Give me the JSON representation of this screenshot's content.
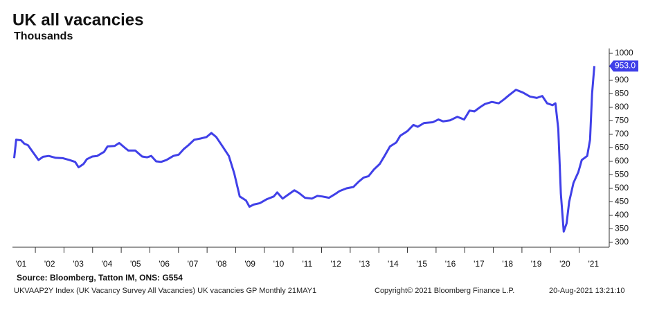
{
  "chart_data": {
    "type": "line",
    "title": "UK all vacancies",
    "subtitle": "Thousands",
    "source": "Source: Bloomberg, Tatton IM, ONS: G554",
    "footer_left": "UKVAAP2Y Index (UK Vacancy Survey All Vacancies) UK vacancies GP  Monthly 21MAY1",
    "footer_center": "Copyright© 2021 Bloomberg Finance L.P.",
    "footer_right": "20-Aug-2021 13:21:10",
    "color": "#4040e8",
    "x": [
      2001.26,
      2001.33,
      2001.5,
      2001.62,
      2001.74,
      2001.94,
      2002.11,
      2002.27,
      2002.47,
      2002.71,
      2002.95,
      2003.19,
      2003.39,
      2003.51,
      2003.68,
      2003.8,
      2003.99,
      2004.16,
      2004.4,
      2004.52,
      2004.77,
      2004.93,
      2005.13,
      2005.25,
      2005.49,
      2005.73,
      2005.9,
      2006.05,
      2006.22,
      2006.39,
      2006.58,
      2006.82,
      2007.01,
      2007.18,
      2007.35,
      2007.55,
      2007.79,
      2007.98,
      2008.15,
      2008.32,
      2008.51,
      2008.76,
      2008.95,
      2009.05,
      2009.14,
      2009.36,
      2009.48,
      2009.63,
      2009.84,
      2010.09,
      2010.33,
      2010.45,
      2010.64,
      2010.81,
      2011.05,
      2011.22,
      2011.42,
      2011.66,
      2011.85,
      2012.02,
      2012.26,
      2012.46,
      2012.63,
      2012.87,
      2013.11,
      2013.3,
      2013.47,
      2013.64,
      2013.83,
      2014.03,
      2014.2,
      2014.39,
      2014.61,
      2014.75,
      2015.0,
      2015.21,
      2015.36,
      2015.58,
      2015.89,
      2016.08,
      2016.25,
      2016.49,
      2016.74,
      2016.98,
      2017.17,
      2017.34,
      2017.53,
      2017.7,
      2017.95,
      2018.19,
      2018.38,
      2018.55,
      2018.79,
      2019.03,
      2019.28,
      2019.52,
      2019.71,
      2019.88,
      2020.07,
      2020.17,
      2020.27,
      2020.36,
      2020.46,
      2020.56,
      2020.65,
      2020.8,
      2020.97,
      2021.09,
      2021.28,
      2021.38,
      2021.45,
      2021.53
    ],
    "values": [
      612,
      680,
      678,
      665,
      660,
      630,
      605,
      617,
      620,
      613,
      612,
      605,
      598,
      578,
      590,
      608,
      618,
      620,
      635,
      655,
      657,
      668,
      650,
      640,
      640,
      618,
      615,
      620,
      600,
      598,
      605,
      620,
      625,
      645,
      660,
      680,
      685,
      690,
      705,
      690,
      660,
      620,
      555,
      510,
      470,
      455,
      432,
      440,
      445,
      460,
      470,
      485,
      462,
      475,
      493,
      482,
      465,
      462,
      472,
      470,
      465,
      478,
      490,
      500,
      505,
      525,
      540,
      545,
      570,
      590,
      620,
      655,
      670,
      695,
      712,
      735,
      728,
      742,
      745,
      755,
      748,
      752,
      765,
      755,
      788,
      785,
      800,
      812,
      820,
      815,
      830,
      845,
      865,
      855,
      840,
      835,
      842,
      815,
      808,
      815,
      720,
      480,
      340,
      370,
      450,
      520,
      560,
      605,
      620,
      680,
      850,
      953
    ],
    "value_labels": [
      null,
      null,
      null,
      null,
      null,
      null,
      null,
      null,
      null,
      null,
      null,
      null,
      null,
      null,
      null,
      null,
      null,
      null,
      null,
      null,
      null,
      null,
      null,
      null,
      null,
      null,
      null,
      null,
      null,
      null,
      null,
      null,
      null,
      null,
      null,
      null,
      null,
      null,
      null,
      null,
      null,
      null,
      null,
      null,
      null,
      null,
      null,
      null,
      null,
      null,
      null,
      null,
      null,
      null,
      null,
      null,
      null,
      null,
      null,
      null,
      null,
      null,
      null,
      null,
      null,
      null,
      null,
      null,
      null,
      null,
      null,
      null,
      null,
      null,
      null,
      null,
      null,
      null,
      null,
      null,
      null,
      null,
      null,
      null,
      null,
      null,
      null,
      null,
      null,
      null,
      null,
      null,
      null,
      null,
      null,
      null,
      null,
      null,
      null,
      null,
      null,
      null,
      null,
      null,
      null,
      null,
      null,
      null,
      null,
      null,
      null,
      "953.0"
    ],
    "xlim": [
      2001.2,
      2022.05
    ],
    "xticks": [
      {
        "value": 2001.5,
        "label": "'01"
      },
      {
        "value": 2002.5,
        "label": "'02"
      },
      {
        "value": 2003.5,
        "label": "'03"
      },
      {
        "value": 2004.5,
        "label": "'04"
      },
      {
        "value": 2005.5,
        "label": "'05"
      },
      {
        "value": 2006.5,
        "label": "'06"
      },
      {
        "value": 2007.5,
        "label": "'07"
      },
      {
        "value": 2008.5,
        "label": "'08"
      },
      {
        "value": 2009.5,
        "label": "'09"
      },
      {
        "value": 2010.5,
        "label": "'10"
      },
      {
        "value": 2011.5,
        "label": "'11"
      },
      {
        "value": 2012.5,
        "label": "'12"
      },
      {
        "value": 2013.5,
        "label": "'13"
      },
      {
        "value": 2014.5,
        "label": "'14"
      },
      {
        "value": 2015.5,
        "label": "'15"
      },
      {
        "value": 2016.5,
        "label": "'16"
      },
      {
        "value": 2017.5,
        "label": "'17"
      },
      {
        "value": 2018.5,
        "label": "'18"
      },
      {
        "value": 2019.5,
        "label": "'19"
      },
      {
        "value": 2020.5,
        "label": "'20"
      },
      {
        "value": 2021.5,
        "label": "'21"
      }
    ],
    "ylim": [
      282,
      1018
    ],
    "yticks": [
      300,
      350,
      400,
      450,
      500,
      550,
      600,
      650,
      700,
      750,
      800,
      850,
      900,
      950,
      1000
    ],
    "yaxis_side": "right"
  }
}
